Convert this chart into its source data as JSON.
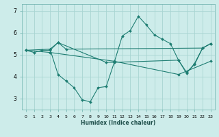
{
  "background_color": "#cdecea",
  "grid_color": "#a8d5d2",
  "line_color": "#1e7d72",
  "xlabel": "Humidex (Indice chaleur)",
  "xlim": [
    -0.5,
    23.5
  ],
  "ylim": [
    2.5,
    7.3
  ],
  "yticks": [
    3,
    4,
    5,
    6,
    7
  ],
  "xtick_labels": [
    "0",
    "1",
    "2",
    "3",
    "4",
    "5",
    "6",
    "7",
    "8",
    "9",
    "10",
    "11",
    "12",
    "13",
    "14",
    "15",
    "16",
    "17",
    "18",
    "19",
    "20",
    "21",
    "22",
    "23"
  ],
  "lines": [
    {
      "x": [
        0,
        1,
        2,
        3,
        4,
        10,
        11,
        12,
        13,
        14,
        15,
        16,
        17,
        18,
        19,
        20,
        21,
        22,
        23
      ],
      "y": [
        5.2,
        5.1,
        5.2,
        5.2,
        5.55,
        4.65,
        4.65,
        5.85,
        6.1,
        6.75,
        6.35,
        5.9,
        5.7,
        5.5,
        4.75,
        4.2,
        4.55,
        5.3,
        5.5
      ]
    },
    {
      "x": [
        0,
        3,
        4,
        5,
        22,
        23
      ],
      "y": [
        5.2,
        5.25,
        5.55,
        5.25,
        5.3,
        5.5
      ]
    },
    {
      "x": [
        3,
        4,
        5,
        6,
        7,
        8,
        9,
        10,
        11,
        19,
        20,
        21,
        22,
        23
      ],
      "y": [
        5.25,
        4.1,
        3.8,
        3.5,
        2.95,
        2.85,
        3.5,
        3.55,
        4.65,
        4.75,
        4.15,
        4.6,
        5.3,
        5.5
      ]
    },
    {
      "x": [
        0,
        3,
        11,
        19,
        23
      ],
      "y": [
        5.2,
        5.1,
        4.7,
        4.1,
        4.7
      ]
    }
  ]
}
